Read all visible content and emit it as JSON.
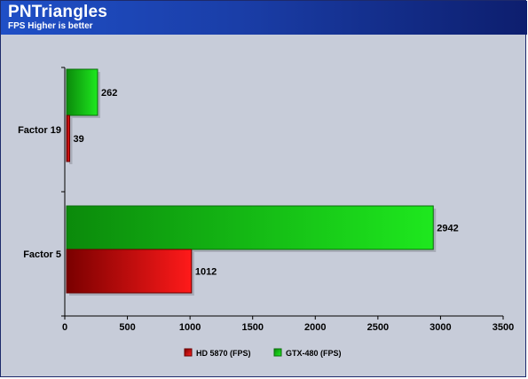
{
  "header": {
    "title": "PNTriangles",
    "subtitle": "FPS Higher is better"
  },
  "colors": {
    "background": "#c7ccd9",
    "header_start": "#1f4fc6",
    "header_end": "#0d1e6e",
    "hd5870": "#e01010",
    "gtx480": "#17c217"
  },
  "chart_data": {
    "type": "bar",
    "orientation": "horizontal",
    "categories": [
      "Factor 19",
      "Factor 5"
    ],
    "series": [
      {
        "name": "HD 5870 (FPS)",
        "values": [
          39,
          1012
        ]
      },
      {
        "name": "GTX-480 (FPS)",
        "values": [
          262,
          2942
        ]
      }
    ],
    "xlim": [
      0,
      3500
    ],
    "xticks": [
      0,
      500,
      1000,
      1500,
      2000,
      2500,
      3000,
      3500
    ],
    "grid": false,
    "legend_position": "bottom"
  }
}
